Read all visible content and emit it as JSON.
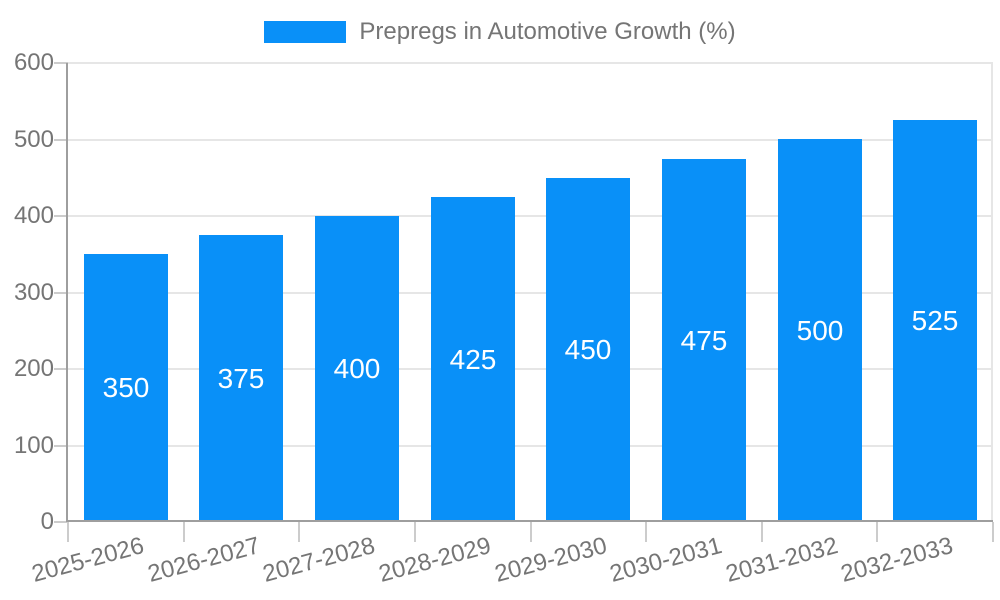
{
  "legend": {
    "label": "Prepregs in Automotive Growth (%)"
  },
  "colors": {
    "bar": "#0990f8",
    "grid": "#e6e6e6",
    "axis_line": "#9e9e9e",
    "tick": "#cccccc",
    "axis_label": "#757575",
    "bar_label": "#ffffff",
    "background": "#ffffff"
  },
  "chart_data": {
    "type": "bar",
    "title": "",
    "legend": [
      "Prepregs in Automotive Growth (%)"
    ],
    "legend_position": "top-center",
    "categories": [
      "2025-2026",
      "2026-2027",
      "2027-2028",
      "2028-2029",
      "2029-2030",
      "2030-2031",
      "2031-2032",
      "2032-2033"
    ],
    "values": [
      350,
      375,
      400,
      425,
      450,
      475,
      500,
      525
    ],
    "bar_value_labels_shown": true,
    "xlabel": "",
    "ylabel": "",
    "ylim": [
      0,
      600
    ],
    "yticks": [
      0,
      100,
      200,
      300,
      400,
      500,
      600
    ],
    "grid": true,
    "x_tick_label_rotation_deg": -15
  }
}
